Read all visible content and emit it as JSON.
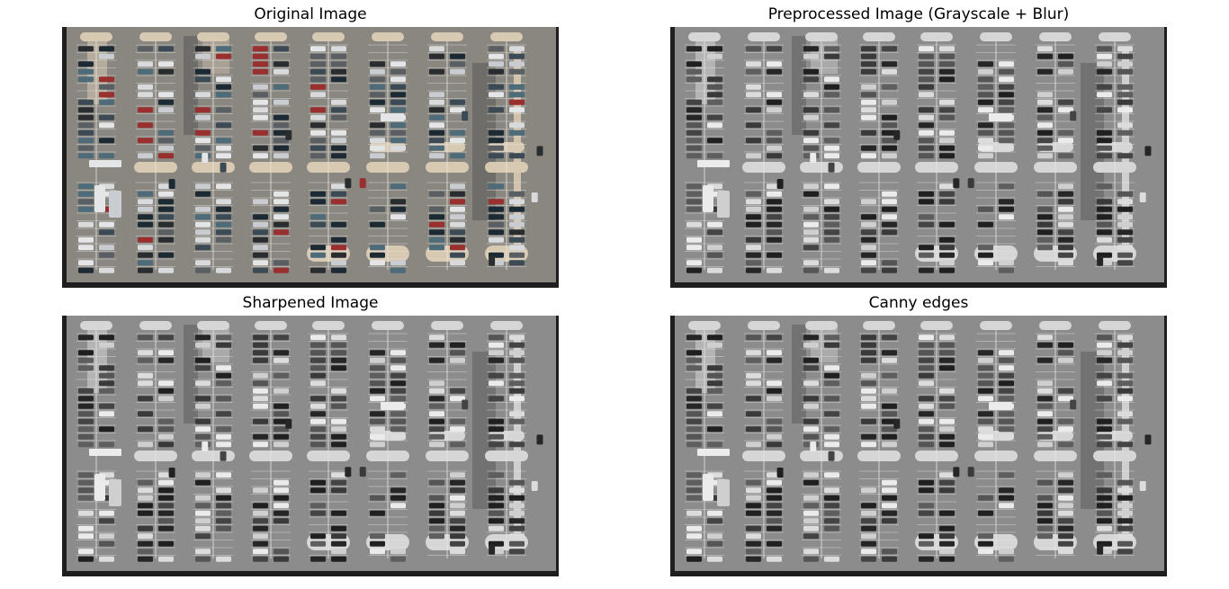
{
  "panels": [
    {
      "title": "Original Image",
      "mode": "color",
      "icon": "parking-lot-aerial-photo"
    },
    {
      "title": "Preprocessed Image (Grayscale + Blur)",
      "mode": "gray",
      "icon": "parking-lot-aerial-photo"
    },
    {
      "title": "Sharpened Image",
      "mode": "gray",
      "icon": "parking-lot-aerial-photo"
    },
    {
      "title": "Canny edges",
      "mode": "gray",
      "icon": "parking-lot-aerial-photo"
    }
  ],
  "palette": {
    "color": {
      "asphalt": "#8a8781",
      "asphalt_dark": "#6f6d69",
      "island": "#d8c9b3",
      "line": "#e8e6e0",
      "border": "#1e1e1e",
      "lane": "#7b7975",
      "cars": [
        "#2a2d30",
        "#d8dadc",
        "#3b4a55",
        "#9a2f2f",
        "#c9ccd0",
        "#1c2a33",
        "#4d6b78",
        "#e4e5e6",
        "#5a5f63"
      ]
    },
    "gray": {
      "asphalt": "#8c8c8c",
      "asphalt_dark": "#727272",
      "island": "#d6d6d6",
      "line": "#e6e6e6",
      "border": "#1e1e1e",
      "lane": "#7c7c7c",
      "cars": [
        "#262626",
        "#dcdcdc",
        "#444444",
        "#3a3a3a",
        "#cfcfcf",
        "#202020",
        "#5e5e5e",
        "#ebebeb",
        "#555555"
      ]
    }
  }
}
